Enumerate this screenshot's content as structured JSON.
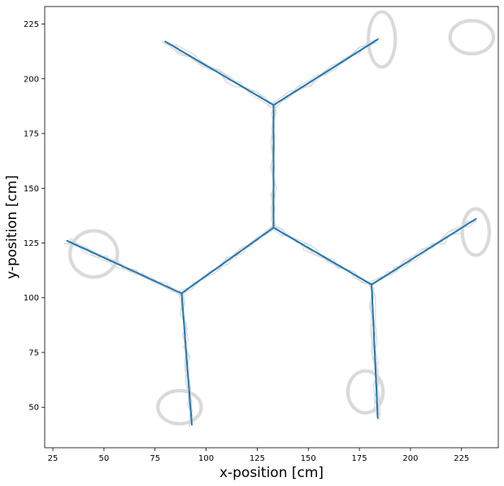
{
  "chart_data": {
    "type": "line",
    "title": "",
    "xlabel": "x-position [cm]",
    "ylabel": "y-position [cm]",
    "xlim": [
      21,
      243
    ],
    "ylim": [
      31.5,
      233
    ],
    "xticks": [
      25,
      50,
      75,
      100,
      125,
      150,
      175,
      200,
      225
    ],
    "yticks": [
      50,
      75,
      100,
      125,
      150,
      175,
      200,
      225
    ],
    "grid": false,
    "colors": {
      "track_edges": "#1f77b4",
      "raw_trajectory": "#d9d9d9"
    },
    "series": [
      {
        "style": "edges",
        "segments": [
          [
            [
              133,
              132
            ],
            [
              133,
              188
            ]
          ],
          [
            [
              133,
              188
            ],
            [
              80,
              217
            ]
          ],
          [
            [
              133,
              188
            ],
            [
              184,
              218
            ]
          ],
          [
            [
              133,
              132
            ],
            [
              88,
              102
            ]
          ],
          [
            [
              88,
              102
            ],
            [
              32,
              126
            ]
          ],
          [
            [
              88,
              102
            ],
            [
              93,
              42
            ]
          ],
          [
            [
              133,
              132
            ],
            [
              181,
              106
            ]
          ],
          [
            [
              181,
              106
            ],
            [
              232,
              136
            ]
          ],
          [
            [
              181,
              106
            ],
            [
              184,
              45
            ]
          ]
        ]
      }
    ],
    "trajectory_loops": [
      {
        "cx": 230,
        "cy": 219,
        "rx": 10,
        "ry": 7
      },
      {
        "cx": 186,
        "cy": 218,
        "rx": 6,
        "ry": 12
      },
      {
        "cx": 45,
        "cy": 120,
        "rx": 11,
        "ry": 10
      },
      {
        "cx": 232,
        "cy": 130,
        "rx": 6,
        "ry": 10
      },
      {
        "cx": 87,
        "cy": 50,
        "rx": 10,
        "ry": 7
      },
      {
        "cx": 178,
        "cy": 57,
        "rx": 8,
        "ry": 9
      }
    ]
  }
}
